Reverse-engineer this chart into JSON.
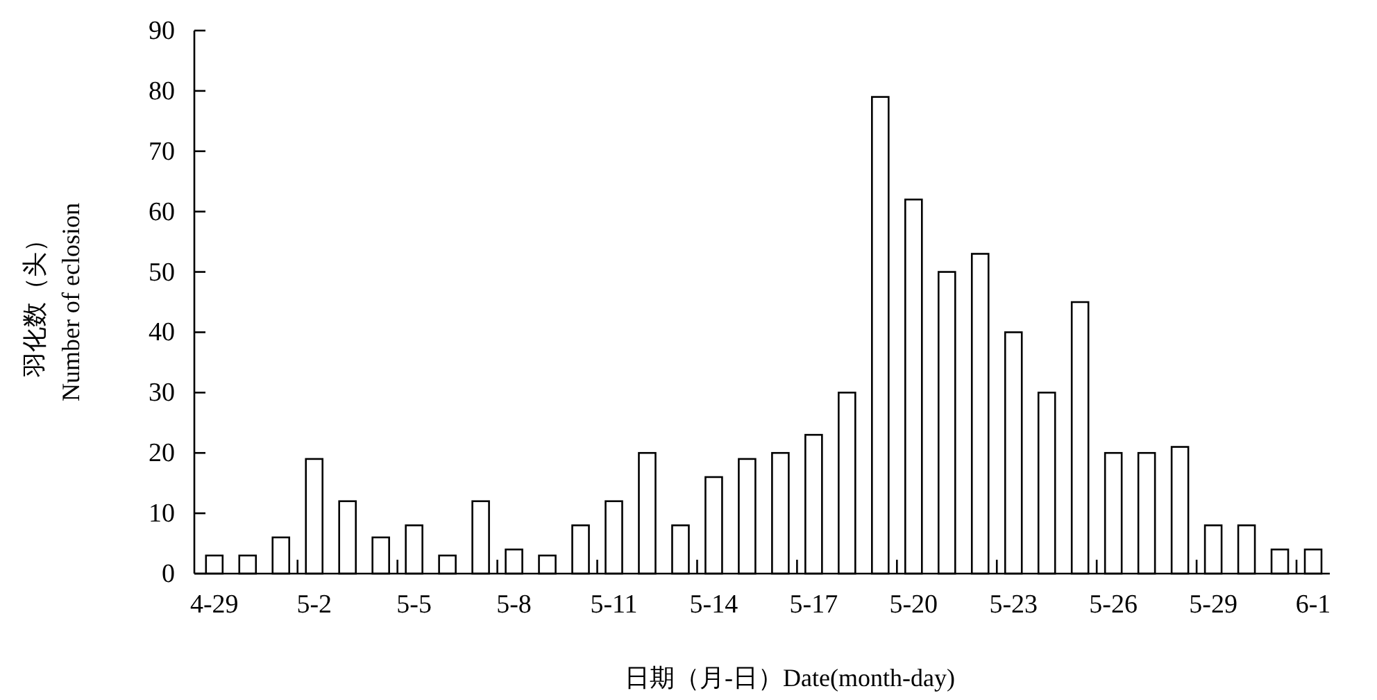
{
  "chart_data": {
    "type": "bar",
    "xlabel": "日期（月-日）Date(month-day)",
    "ylabel": "羽化数（头）\nNumber of eclosion",
    "categories": [
      "4-29",
      null,
      null,
      "5-2",
      null,
      null,
      "5-5",
      null,
      null,
      "5-8",
      null,
      null,
      "5-11",
      null,
      null,
      "5-14",
      null,
      null,
      "5-17",
      null,
      null,
      "5-20",
      null,
      null,
      "5-23",
      null,
      null,
      "5-26",
      null,
      null,
      "5-29",
      null,
      null,
      "6-1"
    ],
    "values": [
      3,
      3,
      6,
      19,
      12,
      6,
      8,
      3,
      12,
      4,
      3,
      8,
      12,
      20,
      8,
      16,
      19,
      20,
      23,
      30,
      79,
      62,
      50,
      53,
      40,
      30,
      45,
      20,
      20,
      21,
      8,
      8,
      4,
      4
    ],
    "color": "#ffffff",
    "ylim": [
      0,
      90
    ],
    "yticks": [
      0,
      10,
      20,
      30,
      40,
      50,
      60,
      70,
      80,
      90
    ],
    "grid": false
  }
}
